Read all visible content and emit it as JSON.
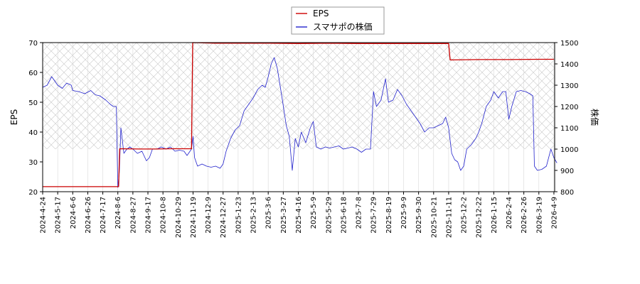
{
  "chart_data": {
    "type": "line",
    "title": "",
    "legend": {
      "placement": "top-center",
      "entries": [
        {
          "name": "EPS",
          "color": "#cc0000"
        },
        {
          "name": "スマサポの株価",
          "color": "#2222cc"
        }
      ]
    },
    "x_axis": {
      "tick_labels": [
        "2024-4-24",
        "2024-5-17",
        "2024-6-6",
        "2024-6-26",
        "2024-7-17",
        "2024-8-6",
        "2024-8-27",
        "2024-9-17",
        "2024-10-8",
        "2024-10-29",
        "2024-11-19",
        "2024-12-9",
        "2024-12-27",
        "2025-1-23",
        "2025-2-13",
        "2025-3-6",
        "2025-3-27",
        "2025-4-16",
        "2025-5-9",
        "2025-5-29",
        "2025-6-18",
        "2025-7-8",
        "2025-7-29",
        "2025-8-19",
        "2025-9-9",
        "2025-9-30",
        "2025-10-21",
        "2025-11-11",
        "2025-12-2",
        "2025-12-22",
        "2026-1-15",
        "2026-2-4",
        "2026-2-26",
        "2026-3-19",
        "2026-4-9"
      ]
    },
    "y_left": {
      "label": "EPS",
      "ylim": [
        20,
        70
      ],
      "ticks": [
        20,
        30,
        40,
        50,
        60,
        70
      ]
    },
    "y_right": {
      "label": "株価",
      "ylim": [
        800,
        1500
      ],
      "ticks": [
        800,
        900,
        1000,
        1100,
        1200,
        1300,
        1400,
        1500
      ]
    },
    "grid": true,
    "series": [
      {
        "name": "EPS",
        "axis": "left",
        "color": "#cc0000",
        "points": [
          [
            0.0,
            21.7
          ],
          [
            0.6,
            21.7
          ],
          [
            3.0,
            21.7
          ],
          [
            5.05,
            21.7
          ],
          [
            5.12,
            34.4
          ],
          [
            6.5,
            34.3
          ],
          [
            7.5,
            34.3
          ],
          [
            8.5,
            34.4
          ],
          [
            9.9,
            34.4
          ],
          [
            9.98,
            70.0
          ],
          [
            11.5,
            69.8
          ],
          [
            13.0,
            69.8
          ],
          [
            15.0,
            69.8
          ],
          [
            17.0,
            69.7
          ],
          [
            19.0,
            69.8
          ],
          [
            21.0,
            69.7
          ],
          [
            23.0,
            69.7
          ],
          [
            25.0,
            69.7
          ],
          [
            27.0,
            69.7
          ],
          [
            27.1,
            64.2
          ],
          [
            29.0,
            64.3
          ],
          [
            31.0,
            64.3
          ],
          [
            33.0,
            64.4
          ],
          [
            34.0,
            64.4
          ]
        ]
      },
      {
        "name": "スマサポの株価",
        "axis": "right",
        "color": "#2222cc",
        "points": [
          [
            0.0,
            1290
          ],
          [
            0.3,
            1300
          ],
          [
            0.6,
            1340
          ],
          [
            1.0,
            1300
          ],
          [
            1.3,
            1285
          ],
          [
            1.6,
            1310
          ],
          [
            1.9,
            1300
          ],
          [
            2.0,
            1275
          ],
          [
            2.4,
            1270
          ],
          [
            2.8,
            1260
          ],
          [
            3.2,
            1275
          ],
          [
            3.5,
            1255
          ],
          [
            3.8,
            1250
          ],
          [
            4.2,
            1230
          ],
          [
            4.5,
            1210
          ],
          [
            4.7,
            1200
          ],
          [
            4.9,
            1200
          ],
          [
            5.0,
            820
          ],
          [
            5.1,
            890
          ],
          [
            5.2,
            1100
          ],
          [
            5.4,
            980
          ],
          [
            5.6,
            1000
          ],
          [
            5.8,
            1010
          ],
          [
            6.0,
            1000
          ],
          [
            6.3,
            980
          ],
          [
            6.6,
            990
          ],
          [
            6.9,
            945
          ],
          [
            7.1,
            960
          ],
          [
            7.3,
            1000
          ],
          [
            7.6,
            1000
          ],
          [
            7.9,
            1010
          ],
          [
            8.2,
            1000
          ],
          [
            8.5,
            1010
          ],
          [
            8.8,
            990
          ],
          [
            9.1,
            995
          ],
          [
            9.4,
            990
          ],
          [
            9.6,
            970
          ],
          [
            9.9,
            1000
          ],
          [
            10.0,
            1060
          ],
          [
            10.1,
            960
          ],
          [
            10.3,
            920
          ],
          [
            10.6,
            930
          ],
          [
            10.9,
            920
          ],
          [
            11.2,
            915
          ],
          [
            11.5,
            920
          ],
          [
            11.8,
            910
          ],
          [
            12.0,
            930
          ],
          [
            12.2,
            990
          ],
          [
            12.5,
            1050
          ],
          [
            12.8,
            1090
          ],
          [
            13.1,
            1110
          ],
          [
            13.4,
            1180
          ],
          [
            13.7,
            1210
          ],
          [
            14.0,
            1240
          ],
          [
            14.3,
            1280
          ],
          [
            14.6,
            1300
          ],
          [
            14.8,
            1290
          ],
          [
            15.0,
            1340
          ],
          [
            15.2,
            1400
          ],
          [
            15.4,
            1430
          ],
          [
            15.6,
            1380
          ],
          [
            15.9,
            1250
          ],
          [
            16.2,
            1110
          ],
          [
            16.4,
            1060
          ],
          [
            16.6,
            900
          ],
          [
            16.8,
            1050
          ],
          [
            17.0,
            1010
          ],
          [
            17.2,
            1080
          ],
          [
            17.5,
            1030
          ],
          [
            17.8,
            1100
          ],
          [
            18.0,
            1130
          ],
          [
            18.2,
            1010
          ],
          [
            18.5,
            1000
          ],
          [
            18.8,
            1010
          ],
          [
            19.1,
            1005
          ],
          [
            19.4,
            1010
          ],
          [
            19.7,
            1015
          ],
          [
            20.0,
            1000
          ],
          [
            20.3,
            1005
          ],
          [
            20.6,
            1010
          ],
          [
            20.9,
            1000
          ],
          [
            21.2,
            985
          ],
          [
            21.5,
            1000
          ],
          [
            21.8,
            1000
          ],
          [
            22.0,
            1270
          ],
          [
            22.2,
            1200
          ],
          [
            22.5,
            1230
          ],
          [
            22.8,
            1330
          ],
          [
            23.0,
            1220
          ],
          [
            23.3,
            1230
          ],
          [
            23.6,
            1280
          ],
          [
            23.9,
            1250
          ],
          [
            24.2,
            1210
          ],
          [
            24.5,
            1180
          ],
          [
            24.8,
            1150
          ],
          [
            25.1,
            1120
          ],
          [
            25.4,
            1080
          ],
          [
            25.7,
            1100
          ],
          [
            26.0,
            1100
          ],
          [
            26.3,
            1110
          ],
          [
            26.6,
            1120
          ],
          [
            26.8,
            1150
          ],
          [
            27.0,
            1100
          ],
          [
            27.2,
            980
          ],
          [
            27.4,
            950
          ],
          [
            27.6,
            940
          ],
          [
            27.8,
            900
          ],
          [
            28.0,
            920
          ],
          [
            28.2,
            1000
          ],
          [
            28.5,
            1020
          ],
          [
            28.8,
            1050
          ],
          [
            29.0,
            1080
          ],
          [
            29.2,
            1120
          ],
          [
            29.5,
            1200
          ],
          [
            29.8,
            1230
          ],
          [
            30.0,
            1270
          ],
          [
            30.3,
            1240
          ],
          [
            30.6,
            1270
          ],
          [
            30.8,
            1270
          ],
          [
            31.0,
            1140
          ],
          [
            31.2,
            1200
          ],
          [
            31.5,
            1270
          ],
          [
            31.8,
            1275
          ],
          [
            32.1,
            1270
          ],
          [
            32.4,
            1260
          ],
          [
            32.6,
            1250
          ],
          [
            32.7,
            920
          ],
          [
            32.9,
            900
          ],
          [
            33.2,
            905
          ],
          [
            33.5,
            920
          ],
          [
            33.8,
            1000
          ],
          [
            34.0,
            960
          ],
          [
            34.2,
            935
          ]
        ]
      }
    ]
  }
}
